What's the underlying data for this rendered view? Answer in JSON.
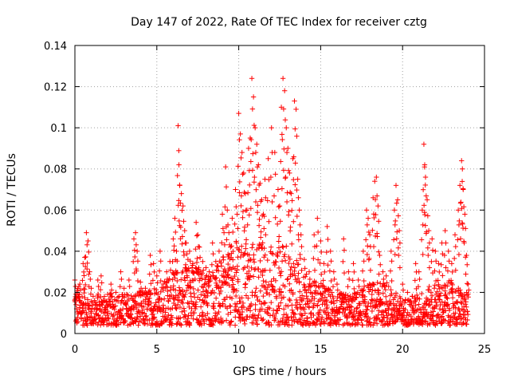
{
  "chart_data": {
    "type": "scatter",
    "title": "Day 147 of 2022, Rate Of TEC Index for receiver cztg",
    "xlabel": "GPS time / hours",
    "ylabel": "ROTI / TECUs",
    "xlim": [
      0,
      25
    ],
    "ylim": [
      0,
      0.14
    ],
    "xticks": [
      0,
      5,
      10,
      15,
      20,
      25
    ],
    "xtick_labels": [
      "0",
      "5",
      "10",
      "15",
      "20",
      "25"
    ],
    "yticks": [
      0,
      0.02,
      0.04,
      0.06,
      0.08,
      0.1,
      0.12,
      0.14
    ],
    "ytick_labels": [
      "0",
      "0.02",
      "0.04",
      "0.06",
      "0.08",
      "0.1",
      "0.12",
      "0.14"
    ],
    "grid": true,
    "marker": "+",
    "color": "#ff0000",
    "series": [
      {
        "name": "ROTI",
        "points": [
          [
            0.0,
            0.026
          ],
          [
            0.1,
            0.012
          ],
          [
            0.2,
            0.018
          ],
          [
            0.3,
            0.024
          ],
          [
            0.4,
            0.015
          ],
          [
            0.5,
            0.034
          ],
          [
            0.6,
            0.037
          ],
          [
            0.7,
            0.049
          ],
          [
            0.8,
            0.045
          ],
          [
            0.9,
            0.03
          ],
          [
            1.0,
            0.022
          ],
          [
            1.2,
            0.016
          ],
          [
            1.4,
            0.026
          ],
          [
            1.6,
            0.028
          ],
          [
            1.8,
            0.018
          ],
          [
            2.0,
            0.014
          ],
          [
            2.2,
            0.024
          ],
          [
            2.5,
            0.02
          ],
          [
            2.8,
            0.03
          ],
          [
            3.0,
            0.022
          ],
          [
            3.3,
            0.026
          ],
          [
            3.6,
            0.046
          ],
          [
            3.7,
            0.049
          ],
          [
            3.8,
            0.04
          ],
          [
            4.0,
            0.025
          ],
          [
            4.3,
            0.022
          ],
          [
            4.6,
            0.038
          ],
          [
            4.8,
            0.034
          ],
          [
            5.0,
            0.028
          ],
          [
            5.2,
            0.04
          ],
          [
            5.4,
            0.022
          ],
          [
            5.6,
            0.03
          ],
          [
            5.8,
            0.035
          ],
          [
            6.0,
            0.046
          ],
          [
            6.1,
            0.056
          ],
          [
            6.2,
            0.04
          ],
          [
            6.3,
            0.101
          ],
          [
            6.35,
            0.082
          ],
          [
            6.4,
            0.072
          ],
          [
            6.5,
            0.068
          ],
          [
            6.6,
            0.062
          ],
          [
            6.7,
            0.05
          ],
          [
            6.8,
            0.044
          ],
          [
            6.9,
            0.036
          ],
          [
            7.0,
            0.04
          ],
          [
            7.2,
            0.034
          ],
          [
            7.4,
            0.054
          ],
          [
            7.5,
            0.048
          ],
          [
            7.6,
            0.042
          ],
          [
            7.8,
            0.035
          ],
          [
            8.0,
            0.032
          ],
          [
            8.2,
            0.03
          ],
          [
            8.4,
            0.044
          ],
          [
            8.6,
            0.035
          ],
          [
            8.8,
            0.04
          ],
          [
            9.0,
            0.058
          ],
          [
            9.1,
            0.049
          ],
          [
            9.2,
            0.081
          ],
          [
            9.3,
            0.06
          ],
          [
            9.4,
            0.049
          ],
          [
            9.5,
            0.042
          ],
          [
            9.6,
            0.056
          ],
          [
            9.8,
            0.07
          ],
          [
            9.9,
            0.058
          ],
          [
            10.0,
            0.107
          ],
          [
            10.1,
            0.097
          ],
          [
            10.2,
            0.088
          ],
          [
            10.3,
            0.078
          ],
          [
            10.4,
            0.068
          ],
          [
            10.5,
            0.06
          ],
          [
            10.6,
            0.09
          ],
          [
            10.7,
            0.095
          ],
          [
            10.8,
            0.124
          ],
          [
            10.9,
            0.115
          ],
          [
            11.0,
            0.1
          ],
          [
            11.1,
            0.092
          ],
          [
            11.2,
            0.082
          ],
          [
            11.3,
            0.073
          ],
          [
            11.4,
            0.065
          ],
          [
            11.5,
            0.058
          ],
          [
            11.6,
            0.075
          ],
          [
            11.8,
            0.085
          ],
          [
            12.0,
            0.1
          ],
          [
            12.2,
            0.088
          ],
          [
            12.4,
            0.07
          ],
          [
            12.5,
            0.062
          ],
          [
            12.6,
            0.11
          ],
          [
            12.7,
            0.124
          ],
          [
            12.8,
            0.118
          ],
          [
            12.9,
            0.1
          ],
          [
            13.0,
            0.09
          ],
          [
            13.1,
            0.078
          ],
          [
            13.2,
            0.068
          ],
          [
            13.3,
            0.085
          ],
          [
            13.4,
            0.113
          ],
          [
            13.5,
            0.109
          ],
          [
            13.6,
            0.075
          ],
          [
            13.7,
            0.06
          ],
          [
            13.8,
            0.048
          ],
          [
            14.0,
            0.036
          ],
          [
            14.3,
            0.03
          ],
          [
            14.6,
            0.048
          ],
          [
            14.8,
            0.056
          ],
          [
            15.0,
            0.045
          ],
          [
            15.2,
            0.034
          ],
          [
            15.4,
            0.052
          ],
          [
            15.6,
            0.04
          ],
          [
            15.8,
            0.03
          ],
          [
            16.0,
            0.024
          ],
          [
            16.4,
            0.046
          ],
          [
            16.7,
            0.03
          ],
          [
            17.0,
            0.034
          ],
          [
            17.3,
            0.026
          ],
          [
            17.6,
            0.04
          ],
          [
            17.8,
            0.06
          ],
          [
            17.9,
            0.056
          ],
          [
            18.0,
            0.048
          ],
          [
            18.2,
            0.066
          ],
          [
            18.3,
            0.074
          ],
          [
            18.4,
            0.076
          ],
          [
            18.5,
            0.062
          ],
          [
            18.6,
            0.038
          ],
          [
            18.8,
            0.03
          ],
          [
            19.0,
            0.028
          ],
          [
            19.3,
            0.04
          ],
          [
            19.5,
            0.06
          ],
          [
            19.6,
            0.072
          ],
          [
            19.7,
            0.065
          ],
          [
            19.8,
            0.05
          ],
          [
            20.0,
            0.024
          ],
          [
            20.3,
            0.02
          ],
          [
            20.6,
            0.018
          ],
          [
            20.8,
            0.034
          ],
          [
            21.0,
            0.03
          ],
          [
            21.2,
            0.06
          ],
          [
            21.3,
            0.092
          ],
          [
            21.35,
            0.082
          ],
          [
            21.4,
            0.076
          ],
          [
            21.5,
            0.065
          ],
          [
            21.6,
            0.05
          ],
          [
            21.8,
            0.046
          ],
          [
            22.0,
            0.04
          ],
          [
            22.2,
            0.034
          ],
          [
            22.4,
            0.044
          ],
          [
            22.6,
            0.05
          ],
          [
            22.8,
            0.04
          ],
          [
            23.0,
            0.034
          ],
          [
            23.2,
            0.048
          ],
          [
            23.4,
            0.06
          ],
          [
            23.5,
            0.072
          ],
          [
            23.6,
            0.084
          ],
          [
            23.65,
            0.08
          ],
          [
            23.7,
            0.07
          ],
          [
            23.8,
            0.058
          ],
          [
            23.9,
            0.038
          ],
          [
            24.0,
            0.024
          ]
        ],
        "baseline": {
          "x_start": 0,
          "x_end": 24,
          "x_step": 0.04,
          "noise_floor": 0.004,
          "envelope": [
            [
              0,
              0.02
            ],
            [
              1,
              0.016
            ],
            [
              2,
              0.016
            ],
            [
              3,
              0.016
            ],
            [
              4,
              0.017
            ],
            [
              5,
              0.018
            ],
            [
              6,
              0.024
            ],
            [
              7,
              0.028
            ],
            [
              8,
              0.024
            ],
            [
              9,
              0.028
            ],
            [
              10,
              0.034
            ],
            [
              11,
              0.036
            ],
            [
              12,
              0.034
            ],
            [
              13,
              0.034
            ],
            [
              14,
              0.024
            ],
            [
              15,
              0.02
            ],
            [
              16,
              0.016
            ],
            [
              17,
              0.016
            ],
            [
              18,
              0.02
            ],
            [
              19,
              0.02
            ],
            [
              20,
              0.014
            ],
            [
              21,
              0.016
            ],
            [
              22,
              0.02
            ],
            [
              23,
              0.02
            ],
            [
              24,
              0.016
            ]
          ]
        }
      }
    ]
  }
}
